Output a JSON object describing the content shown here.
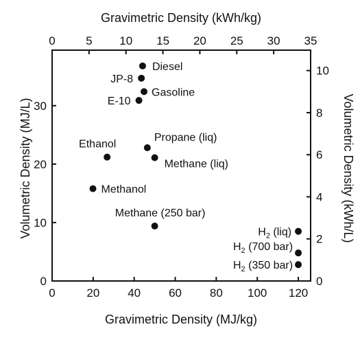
{
  "chart_data": {
    "type": "scatter",
    "title": "",
    "xlabel": "Gravimetric Density (MJ/kg)",
    "ylabel": "Volumetric Density (MJ/L)",
    "x2label": "Gravimetric Density (kWh/kg)",
    "y2label": "Volumetric Density (kWh/L)",
    "xlim": [
      0,
      126
    ],
    "ylim": [
      0,
      39.5
    ],
    "x2lim": [
      0,
      35
    ],
    "y2lim": [
      0,
      10.97
    ],
    "xticks": [
      0,
      20,
      40,
      60,
      80,
      100,
      120
    ],
    "yticks": [
      0,
      10,
      20,
      30
    ],
    "x2ticks": [
      0,
      5,
      10,
      15,
      20,
      25,
      30,
      35
    ],
    "y2ticks": [
      0,
      2,
      4,
      6,
      8,
      10
    ],
    "grid": false,
    "legend": "none",
    "points": [
      {
        "name": "Diesel",
        "label": "Diesel",
        "sub": "",
        "tail": "",
        "x": 44.1,
        "y": 36.8,
        "anchor": "start",
        "dx": 14,
        "dy": 6
      },
      {
        "name": "JP-8",
        "label": "JP-8",
        "sub": "",
        "tail": "",
        "x": 43.5,
        "y": 34.7,
        "anchor": "end",
        "dx": -12,
        "dy": 6
      },
      {
        "name": "Gasoline",
        "label": "Gasoline",
        "sub": "",
        "tail": "",
        "x": 44.8,
        "y": 32.4,
        "anchor": "start",
        "dx": 11,
        "dy": 6
      },
      {
        "name": "E-10",
        "label": "E-10",
        "sub": "",
        "tail": "",
        "x": 42.3,
        "y": 30.9,
        "anchor": "end",
        "dx": -12,
        "dy": 6
      },
      {
        "name": "Propane (liq)",
        "label": "Propane (liq)",
        "sub": "",
        "tail": "",
        "x": 46.4,
        "y": 22.8,
        "anchor": "start",
        "dx": 10,
        "dy": -10
      },
      {
        "name": "Methane (liq)",
        "label": "Methane (liq)",
        "sub": "",
        "tail": "",
        "x": 50.0,
        "y": 21.1,
        "anchor": "start",
        "dx": 14,
        "dy": 14
      },
      {
        "name": "Ethanol",
        "label": "Ethanol",
        "sub": "",
        "tail": "",
        "x": 26.8,
        "y": 21.2,
        "anchor": "middle",
        "dx": -14,
        "dy": -14
      },
      {
        "name": "Methanol",
        "label": "Methanol",
        "sub": "",
        "tail": "",
        "x": 19.9,
        "y": 15.8,
        "anchor": "start",
        "dx": 12,
        "dy": 6
      },
      {
        "name": "Methane (250 bar)",
        "label": "Methane (250 bar)",
        "sub": "",
        "tail": "",
        "x": 50.0,
        "y": 9.4,
        "anchor": "middle",
        "dx": 8,
        "dy": -14
      },
      {
        "name": "H2 (liq)",
        "label": "H",
        "sub": "2",
        "tail": " (liq)",
        "x": 120.0,
        "y": 8.5,
        "anchor": "end",
        "dx": -10,
        "dy": 6
      },
      {
        "name": "H2 (700 bar)",
        "label": "H",
        "sub": "2",
        "tail": " (700 bar)",
        "x": 120.0,
        "y": 4.8,
        "anchor": "end",
        "dx": -8,
        "dy": -4
      },
      {
        "name": "H2 (350 bar)",
        "label": "H",
        "sub": "2",
        "tail": " (350 bar)",
        "x": 120.0,
        "y": 2.8,
        "anchor": "end",
        "dx": -8,
        "dy": 6
      }
    ]
  }
}
